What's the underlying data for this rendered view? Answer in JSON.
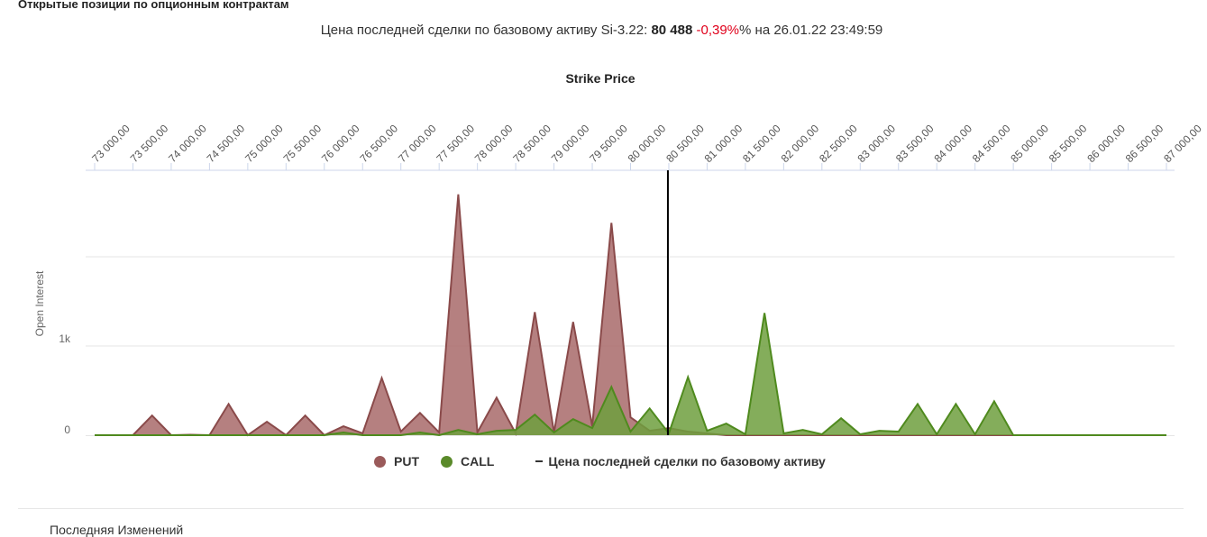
{
  "page": {
    "title": "Открытые позиции по опционным контрактам",
    "cut_text": "Последняя     Изменений"
  },
  "subtitle": {
    "prefix": "Цена последней сделки по базовому активу Si-3.22: ",
    "price": "80 488",
    "change": " -0,39%",
    "suffix": "% на 26.01.22 23:49:59"
  },
  "legend": {
    "put_label": "PUT",
    "call_label": "CALL",
    "line_label": "Цена последней сделки по базовому активу"
  },
  "colors": {
    "put": "#a86a6a",
    "call": "#6f9f3e",
    "call_dot": "#5a8a2a",
    "put_dot": "#9a5a5a",
    "price_line": "#000000",
    "change_negative": "#e0001b"
  },
  "chart_data": {
    "type": "area",
    "title": "Strike Price",
    "xlabel": "Strike Price",
    "ylabel": "Open Interest",
    "x_axis_position": "top",
    "tick_labels": [
      "73 000,00",
      "73 500,00",
      "74 000,00",
      "74 500,00",
      "75 000,00",
      "75 500,00",
      "76 000,00",
      "76 500,00",
      "77 000,00",
      "77 500,00",
      "78 000,00",
      "78 500,00",
      "79 000,00",
      "79 500,00",
      "80 000,00",
      "80 500,00",
      "81 000,00",
      "81 500,00",
      "82 000,00",
      "82 500,00",
      "83 000,00",
      "83 500,00",
      "84 000,00",
      "84 500,00",
      "85 000,00",
      "85 500,00",
      "86 000,00",
      "86 500,00",
      "87 000,00"
    ],
    "y_tick_labels": [
      "0",
      "1k"
    ],
    "ylim": [
      0,
      3000
    ],
    "grid": true,
    "last_price": 80488,
    "x": [
      73000,
      73250,
      73500,
      73750,
      74000,
      74250,
      74500,
      74750,
      75000,
      75250,
      75500,
      75750,
      76000,
      76250,
      76500,
      76750,
      77000,
      77250,
      77500,
      77750,
      78000,
      78250,
      78500,
      78750,
      79000,
      79250,
      79500,
      79750,
      80000,
      80250,
      80500,
      80750,
      81000,
      81250,
      81500,
      81750,
      82000,
      82250,
      82500,
      82750,
      83000,
      83250,
      83500,
      83750,
      84000,
      84250,
      84500,
      84750,
      85000,
      85250,
      85500,
      85750,
      86000,
      86250,
      86500,
      86750,
      87000
    ],
    "series": [
      {
        "name": "PUT",
        "values": [
          0,
          0,
          0,
          220,
          0,
          5,
          0,
          350,
          0,
          150,
          0,
          220,
          0,
          100,
          20,
          640,
          40,
          250,
          30,
          2700,
          30,
          420,
          20,
          1380,
          30,
          1270,
          100,
          2380,
          200,
          50,
          80,
          40,
          20,
          0,
          0,
          0,
          0,
          0,
          0,
          0,
          0,
          0,
          0,
          0,
          0,
          0,
          0,
          0,
          0,
          0,
          0,
          0,
          0,
          0,
          0,
          0,
          0
        ]
      },
      {
        "name": "CALL",
        "values": [
          0,
          0,
          0,
          0,
          0,
          0,
          0,
          0,
          0,
          0,
          0,
          0,
          0,
          30,
          0,
          0,
          0,
          30,
          0,
          60,
          10,
          50,
          60,
          230,
          30,
          180,
          80,
          540,
          40,
          300,
          20,
          650,
          50,
          130,
          10,
          1370,
          20,
          60,
          10,
          190,
          10,
          50,
          40,
          350,
          10,
          350,
          10,
          380,
          0,
          0,
          0,
          0,
          0,
          0,
          0,
          0,
          0
        ]
      }
    ]
  }
}
